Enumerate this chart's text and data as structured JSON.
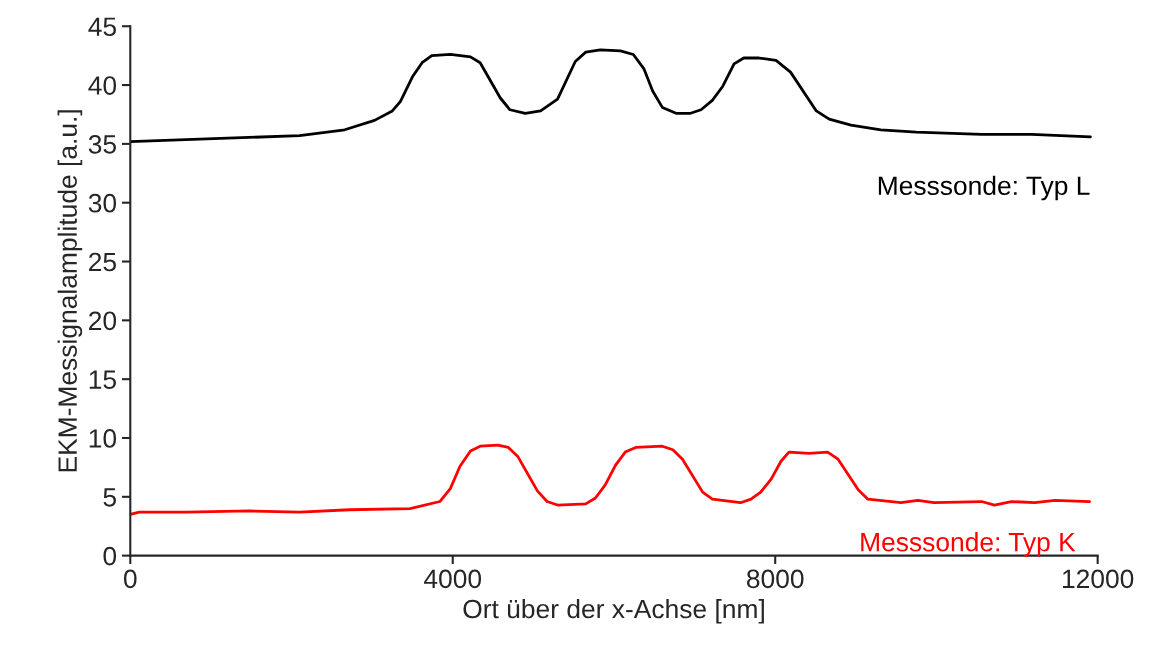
{
  "chart_data": {
    "type": "line",
    "xlabel": "Ort über der x-Achse [nm]",
    "ylabel": "EKM-Messignalamplitude [a.u.]",
    "xlim": [
      0,
      12000
    ],
    "xticks": [
      0,
      4000,
      8000,
      12000
    ],
    "ylim": [
      0,
      45
    ],
    "yticks": [
      0,
      5,
      10,
      15,
      20,
      25,
      30,
      35,
      40,
      45
    ],
    "grid": false,
    "legend": false,
    "marker": "none",
    "line_style": "solid",
    "series": [
      {
        "name": "Messsonde: Typ L",
        "color": "#000000",
        "x": [
          0,
          860,
          2100,
          2660,
          3030,
          3250,
          3350,
          3500,
          3620,
          3740,
          3970,
          4220,
          4340,
          4590,
          4710,
          4900,
          5090,
          5300,
          5520,
          5650,
          5830,
          6080,
          6240,
          6370,
          6480,
          6600,
          6770,
          6950,
          7080,
          7220,
          7350,
          7490,
          7610,
          7800,
          8010,
          8190,
          8510,
          8670,
          8940,
          9310,
          9750,
          10560,
          11180,
          11910
        ],
        "values": [
          35.2,
          35.4,
          35.7,
          36.2,
          37.0,
          37.8,
          38.6,
          40.7,
          41.9,
          42.5,
          42.6,
          42.4,
          41.9,
          38.9,
          37.9,
          37.6,
          37.8,
          38.8,
          42.0,
          42.8,
          43.0,
          42.9,
          42.6,
          41.4,
          39.5,
          38.1,
          37.6,
          37.6,
          37.9,
          38.7,
          39.9,
          41.8,
          42.3,
          42.3,
          42.1,
          41.1,
          37.8,
          37.1,
          36.6,
          36.2,
          36.0,
          35.8,
          35.8,
          35.6
        ]
      },
      {
        "name": "Messsonde: Typ K",
        "color": "#ff0000",
        "x": [
          0,
          112,
          696,
          1480,
          2100,
          2720,
          3470,
          3840,
          3970,
          4090,
          4220,
          4340,
          4560,
          4690,
          4810,
          5050,
          5170,
          5300,
          5650,
          5770,
          5890,
          6020,
          6140,
          6270,
          6600,
          6730,
          6850,
          7100,
          7220,
          7570,
          7700,
          7820,
          7950,
          8070,
          8170,
          8420,
          8650,
          8780,
          9030,
          9150,
          9560,
          9770,
          9970,
          10560,
          10720,
          10930,
          11220,
          11470,
          11900
        ],
        "values": [
          3.5,
          3.7,
          3.7,
          3.8,
          3.7,
          3.9,
          4.0,
          4.6,
          5.7,
          7.6,
          8.9,
          9.3,
          9.4,
          9.2,
          8.4,
          5.5,
          4.6,
          4.3,
          4.4,
          4.9,
          6.0,
          7.7,
          8.8,
          9.2,
          9.3,
          9.0,
          8.2,
          5.4,
          4.8,
          4.5,
          4.8,
          5.4,
          6.5,
          8.0,
          8.8,
          8.7,
          8.8,
          8.2,
          5.6,
          4.8,
          4.5,
          4.7,
          4.5,
          4.6,
          4.3,
          4.6,
          4.5,
          4.7,
          4.6
        ]
      }
    ]
  }
}
